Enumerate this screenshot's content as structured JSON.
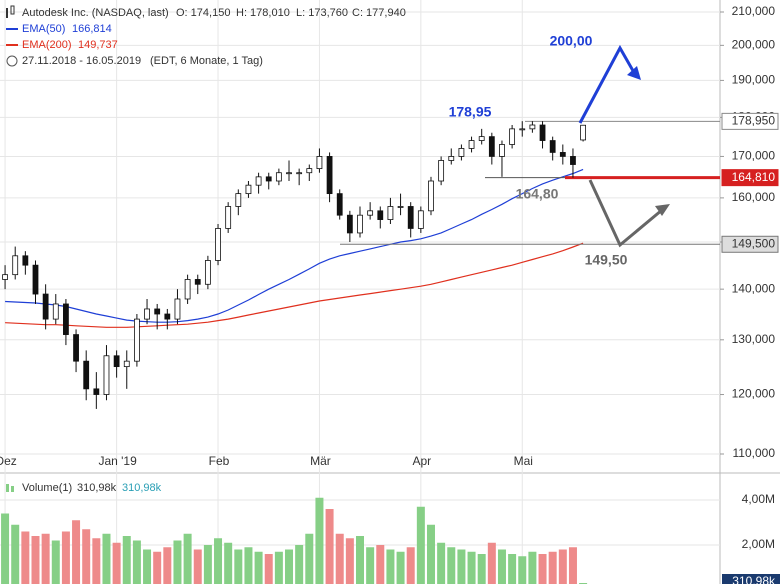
{
  "header": {
    "title": "Autodesk Inc. (NASDAQ, last)",
    "ohlc_text": [
      "O: 174,150",
      "H: 178,010",
      "L: 173,760",
      "C: 177,940"
    ],
    "range_text": "27.11.2018 - 16.05.2019",
    "range_note": "(EDT, 6 Monate, 1 Tag)"
  },
  "chart_data": [
    {
      "type": "candlestick",
      "log": true,
      "grid": true,
      "xlim": [
        -0.5,
        70.5
      ],
      "xticks": [
        {
          "value": 0,
          "label": "Dez"
        },
        {
          "value": 11,
          "label": "Jan '19"
        },
        {
          "value": 21,
          "label": "Feb"
        },
        {
          "value": 31,
          "label": "Mär"
        },
        {
          "value": 41,
          "label": "Apr"
        },
        {
          "value": 51,
          "label": "Mai"
        }
      ],
      "ylim": [
        110,
        210
      ],
      "yticks": [
        {
          "value": 110,
          "label": "110,000"
        },
        {
          "value": 120,
          "label": "120,000"
        },
        {
          "value": 130,
          "label": "130,000"
        },
        {
          "value": 140,
          "label": "140,000"
        },
        {
          "value": 150,
          "label": "150,000"
        },
        {
          "value": 160,
          "label": "160,000"
        },
        {
          "value": 170,
          "label": "170,000"
        },
        {
          "value": 180,
          "label": "180,000"
        },
        {
          "value": 190,
          "label": "190,000"
        },
        {
          "value": 200,
          "label": "200,000"
        },
        {
          "value": 210,
          "label": "210,000"
        }
      ],
      "ohlc": [
        [
          142,
          145,
          140,
          143
        ],
        [
          143,
          149,
          142,
          147
        ],
        [
          147,
          148,
          143,
          145
        ],
        [
          145,
          146,
          137,
          139
        ],
        [
          139,
          141,
          132,
          134
        ],
        [
          134,
          139,
          133,
          137
        ],
        [
          137,
          138,
          129,
          131
        ],
        [
          131,
          132,
          124,
          126
        ],
        [
          126,
          128,
          119,
          121
        ],
        [
          121,
          124,
          117.5,
          120
        ],
        [
          120,
          129,
          119,
          127
        ],
        [
          127,
          128,
          123,
          125
        ],
        [
          125,
          128,
          121,
          126
        ],
        [
          126,
          135,
          125,
          134
        ],
        [
          134,
          138,
          133,
          136
        ],
        [
          136,
          137,
          132,
          135
        ],
        [
          135,
          136,
          132,
          134
        ],
        [
          134,
          140,
          133,
          138
        ],
        [
          138,
          143,
          137,
          142
        ],
        [
          142,
          143,
          139,
          141
        ],
        [
          141,
          147,
          140,
          146
        ],
        [
          146,
          154,
          145,
          153
        ],
        [
          153,
          159,
          152,
          158
        ],
        [
          158,
          162,
          156,
          161
        ],
        [
          161,
          164,
          160,
          163
        ],
        [
          163,
          166,
          161,
          165
        ],
        [
          165,
          166,
          162,
          164
        ],
        [
          164,
          167,
          163,
          166
        ],
        [
          166,
          169,
          164,
          166
        ],
        [
          166,
          167,
          163,
          166
        ],
        [
          166,
          168,
          164,
          167
        ],
        [
          167,
          172,
          166,
          170
        ],
        [
          170,
          171,
          159,
          161
        ],
        [
          161,
          162,
          155,
          156
        ],
        [
          156,
          157,
          150,
          152
        ],
        [
          152,
          158,
          151,
          156
        ],
        [
          156,
          159,
          155,
          157
        ],
        [
          157,
          158,
          153,
          155
        ],
        [
          155,
          160,
          154,
          158
        ],
        [
          158,
          161,
          156,
          158
        ],
        [
          158,
          159,
          151,
          153
        ],
        [
          153,
          158,
          152,
          157
        ],
        [
          157,
          165,
          156,
          164
        ],
        [
          164,
          170,
          163,
          169
        ],
        [
          169,
          172,
          168,
          170
        ],
        [
          170,
          173,
          169,
          172
        ],
        [
          172,
          175,
          171,
          174
        ],
        [
          174,
          177,
          173,
          175
        ],
        [
          175,
          176,
          168,
          170
        ],
        [
          170,
          174,
          165,
          173
        ],
        [
          173,
          178,
          172,
          177
        ],
        [
          177,
          179,
          175,
          177
        ],
        [
          177,
          179,
          176,
          178
        ],
        [
          178,
          179,
          172,
          174
        ],
        [
          174,
          175,
          169,
          171
        ],
        [
          171,
          173,
          168,
          170
        ],
        [
          170,
          172,
          164.8,
          168
        ],
        [
          174.15,
          178.01,
          173.76,
          177.94
        ]
      ],
      "series": [
        {
          "name": "EMA(50)",
          "color": "#1f3fd6",
          "legend_value": "166,814",
          "values": [
            137.5,
            137.4,
            137.3,
            137.2,
            137,
            136.8,
            136.5,
            136,
            135.5,
            135,
            134.6,
            134.2,
            133.8,
            133.6,
            133.5,
            133.4,
            133.4,
            133.5,
            133.7,
            134,
            134.4,
            135,
            135.8,
            136.8,
            137.8,
            138.9,
            140,
            141,
            142,
            143.1,
            144.2,
            145.4,
            146.3,
            147,
            147.5,
            148,
            148.5,
            149,
            149.5,
            150,
            150.3,
            150.7,
            151.3,
            152,
            153,
            154,
            155,
            156.2,
            157.3,
            158.5,
            159.8,
            161,
            162.2,
            163.3,
            164.2,
            165,
            165.8,
            166.814
          ]
        },
        {
          "name": "EMA(200)",
          "color": "#e0301e",
          "legend_value": "149,737",
          "values": [
            133.3,
            133.2,
            133.1,
            133,
            132.9,
            132.9,
            132.8,
            132.7,
            132.6,
            132.5,
            132.4,
            132.4,
            132.4,
            132.5,
            132.6,
            132.7,
            132.8,
            132.9,
            133,
            133.2,
            133.4,
            133.7,
            134,
            134.4,
            134.8,
            135.2,
            135.6,
            136,
            136.4,
            136.8,
            137.2,
            137.6,
            137.9,
            138.2,
            138.5,
            138.8,
            139.1,
            139.4,
            139.7,
            140,
            140.3,
            140.6,
            141,
            141.5,
            142,
            142.5,
            143,
            143.5,
            144,
            144.5,
            145,
            145.6,
            146.2,
            146.8,
            147.4,
            148.1,
            148.9,
            149.737
          ]
        }
      ],
      "levels": [
        {
          "value": 178.95,
          "label": "178,95",
          "axis_label": "178,950"
        },
        {
          "value": 164.81,
          "axis_label": "164,810"
        },
        {
          "value": 164.8,
          "label": "164,80"
        },
        {
          "value": 149.5,
          "label": "149,50",
          "axis_label": "149,500"
        },
        {
          "value": 200,
          "label": "200,00"
        }
      ]
    },
    {
      "type": "bar",
      "ylim": [
        0,
        5000000
      ],
      "yticks": [
        {
          "value": 2000000,
          "label": "2,00M"
        },
        {
          "value": 4000000,
          "label": "4,00M"
        }
      ],
      "up_color": "#86cf86",
      "down_color": "#ee8a8a",
      "series": [
        {
          "name": "Volume(1)",
          "legend_values": [
            "310,98k",
            "310,98k"
          ],
          "last_label": "310,98k",
          "values": [
            3400000,
            2900000,
            2600000,
            2400000,
            2500000,
            2200000,
            2600000,
            3100000,
            2700000,
            2300000,
            2500000,
            2100000,
            2400000,
            2200000,
            1800000,
            1700000,
            1900000,
            2200000,
            2500000,
            1800000,
            2000000,
            2300000,
            2100000,
            1800000,
            1900000,
            1700000,
            1600000,
            1700000,
            1800000,
            2000000,
            2500000,
            4100000,
            3600000,
            2500000,
            2300000,
            2400000,
            1900000,
            2000000,
            1800000,
            1700000,
            1900000,
            3700000,
            2900000,
            2100000,
            1900000,
            1800000,
            1700000,
            1600000,
            2100000,
            1800000,
            1600000,
            1500000,
            1700000,
            1600000,
            1700000,
            1800000,
            1900000,
            310980
          ]
        }
      ]
    }
  ]
}
